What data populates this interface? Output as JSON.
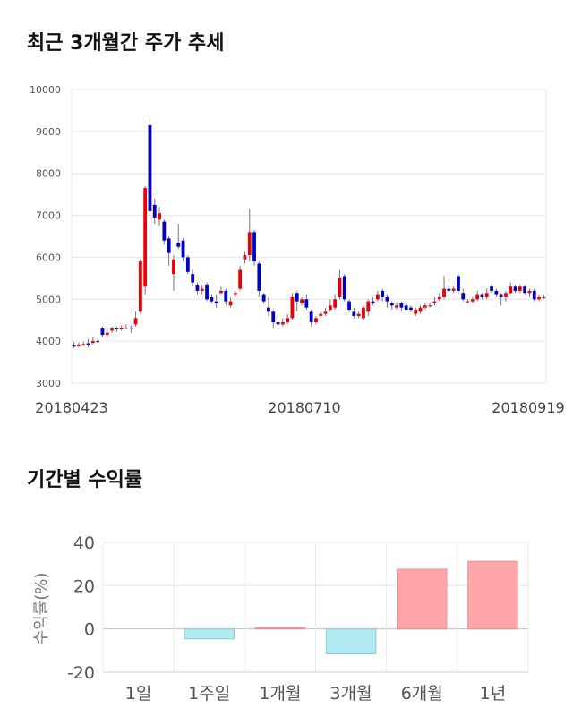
{
  "titles": {
    "price": "최근 3개월간 주가 추세",
    "returns": "기간별 수익률"
  },
  "colors": {
    "up": "#e8000b",
    "down": "#0000c8",
    "positive": "#ffa6a8",
    "negative": "#b2ebf2"
  },
  "chart_data": [
    {
      "type": "candlestick",
      "title": "최근 3개월간 주가 추세",
      "ylim": [
        3000,
        10000
      ],
      "yticks": [
        3000,
        4000,
        5000,
        6000,
        7000,
        8000,
        9000,
        10000
      ],
      "x_tick_labels": [
        "20180423",
        "20180710",
        "20180919"
      ],
      "grid": true,
      "candles": [
        {
          "o": 3900,
          "c": 3870,
          "h": 3980,
          "l": 3840
        },
        {
          "o": 3880,
          "c": 3920,
          "h": 3960,
          "l": 3850
        },
        {
          "o": 3900,
          "c": 3930,
          "h": 3990,
          "l": 3880
        },
        {
          "o": 3950,
          "c": 3900,
          "h": 4050,
          "l": 3860
        },
        {
          "o": 3960,
          "c": 4000,
          "h": 4100,
          "l": 3920
        },
        {
          "o": 4000,
          "c": 3980,
          "h": 4060,
          "l": 3950
        },
        {
          "o": 4300,
          "c": 4150,
          "h": 4350,
          "l": 4100
        },
        {
          "o": 4150,
          "c": 4200,
          "h": 4300,
          "l": 4100
        },
        {
          "o": 4250,
          "c": 4300,
          "h": 4350,
          "l": 4200
        },
        {
          "o": 4300,
          "c": 4280,
          "h": 4350,
          "l": 4220
        },
        {
          "o": 4280,
          "c": 4320,
          "h": 4380,
          "l": 4250
        },
        {
          "o": 4300,
          "c": 4320,
          "h": 4400,
          "l": 4280
        },
        {
          "o": 4320,
          "c": 4300,
          "h": 4380,
          "l": 4200
        },
        {
          "o": 4400,
          "c": 4550,
          "h": 4700,
          "l": 4350
        },
        {
          "o": 4700,
          "c": 5900,
          "h": 5950,
          "l": 4650
        },
        {
          "o": 5300,
          "c": 7650,
          "h": 7700,
          "l": 5100
        },
        {
          "o": 9150,
          "c": 7100,
          "h": 9350,
          "l": 7000
        },
        {
          "o": 7250,
          "c": 6950,
          "h": 7400,
          "l": 6800
        },
        {
          "o": 6900,
          "c": 7050,
          "h": 7200,
          "l": 6750
        },
        {
          "o": 6850,
          "c": 6400,
          "h": 6900,
          "l": 6300
        },
        {
          "o": 6450,
          "c": 6100,
          "h": 6500,
          "l": 5800
        },
        {
          "o": 5600,
          "c": 5950,
          "h": 6050,
          "l": 5200
        },
        {
          "o": 6350,
          "c": 6250,
          "h": 6800,
          "l": 6200
        },
        {
          "o": 6400,
          "c": 6000,
          "h": 6450,
          "l": 5900
        },
        {
          "o": 6000,
          "c": 5650,
          "h": 6050,
          "l": 5600
        },
        {
          "o": 5600,
          "c": 5400,
          "h": 5700,
          "l": 5300
        },
        {
          "o": 5350,
          "c": 5200,
          "h": 5400,
          "l": 5100
        },
        {
          "o": 5200,
          "c": 5250,
          "h": 5350,
          "l": 5100
        },
        {
          "o": 5350,
          "c": 5000,
          "h": 5400,
          "l": 4950
        },
        {
          "o": 5050,
          "c": 4950,
          "h": 5100,
          "l": 4900
        },
        {
          "o": 4950,
          "c": 4900,
          "h": 5100,
          "l": 4800
        },
        {
          "o": 5150,
          "c": 5200,
          "h": 5300,
          "l": 5100
        },
        {
          "o": 5200,
          "c": 4950,
          "h": 5250,
          "l": 4850
        },
        {
          "o": 4850,
          "c": 4950,
          "h": 5050,
          "l": 4800
        },
        {
          "o": 5100,
          "c": 5150,
          "h": 5200,
          "l": 5050
        },
        {
          "o": 5250,
          "c": 5700,
          "h": 5800,
          "l": 5200
        },
        {
          "o": 5950,
          "c": 6050,
          "h": 6150,
          "l": 5850
        },
        {
          "o": 6050,
          "c": 6600,
          "h": 7150,
          "l": 5900
        },
        {
          "o": 6600,
          "c": 5900,
          "h": 6650,
          "l": 5800
        },
        {
          "o": 5850,
          "c": 5200,
          "h": 5900,
          "l": 5050
        },
        {
          "o": 5100,
          "c": 4950,
          "h": 5150,
          "l": 4900
        },
        {
          "o": 4800,
          "c": 4700,
          "h": 5050,
          "l": 4600
        },
        {
          "o": 4700,
          "c": 4450,
          "h": 4750,
          "l": 4300
        },
        {
          "o": 4450,
          "c": 4400,
          "h": 4500,
          "l": 4350
        },
        {
          "o": 4400,
          "c": 4450,
          "h": 4550,
          "l": 4350
        },
        {
          "o": 4450,
          "c": 4550,
          "h": 4650,
          "l": 4400
        },
        {
          "o": 4550,
          "c": 5050,
          "h": 5150,
          "l": 4500
        },
        {
          "o": 5150,
          "c": 4950,
          "h": 5200,
          "l": 4700
        },
        {
          "o": 4900,
          "c": 5000,
          "h": 5050,
          "l": 4850
        },
        {
          "o": 5000,
          "c": 4800,
          "h": 5100,
          "l": 4750
        },
        {
          "o": 4700,
          "c": 4450,
          "h": 4750,
          "l": 4350
        },
        {
          "o": 4450,
          "c": 4550,
          "h": 4600,
          "l": 4400
        },
        {
          "o": 4600,
          "c": 4650,
          "h": 4700,
          "l": 4550
        },
        {
          "o": 4650,
          "c": 4700,
          "h": 4800,
          "l": 4600
        },
        {
          "o": 4750,
          "c": 4850,
          "h": 5000,
          "l": 4700
        },
        {
          "o": 4800,
          "c": 5000,
          "h": 5100,
          "l": 4750
        },
        {
          "o": 5050,
          "c": 5500,
          "h": 5700,
          "l": 5000
        },
        {
          "o": 5550,
          "c": 5000,
          "h": 5600,
          "l": 4950
        },
        {
          "o": 4950,
          "c": 4750,
          "h": 5000,
          "l": 4700
        },
        {
          "o": 4700,
          "c": 4600,
          "h": 4800,
          "l": 4550
        },
        {
          "o": 4600,
          "c": 4650,
          "h": 4700,
          "l": 4550
        },
        {
          "o": 4550,
          "c": 4800,
          "h": 4850,
          "l": 4500
        },
        {
          "o": 4700,
          "c": 4950,
          "h": 5000,
          "l": 4600
        },
        {
          "o": 4950,
          "c": 4900,
          "h": 5050,
          "l": 4850
        },
        {
          "o": 5000,
          "c": 5100,
          "h": 5200,
          "l": 4950
        },
        {
          "o": 5200,
          "c": 5050,
          "h": 5250,
          "l": 4950
        },
        {
          "o": 5050,
          "c": 4950,
          "h": 5100,
          "l": 4800
        },
        {
          "o": 4900,
          "c": 4850,
          "h": 4950,
          "l": 4750
        },
        {
          "o": 4800,
          "c": 4850,
          "h": 4900,
          "l": 4750
        },
        {
          "o": 4900,
          "c": 4800,
          "h": 4950,
          "l": 4700
        },
        {
          "o": 4850,
          "c": 4750,
          "h": 4900,
          "l": 4700
        },
        {
          "o": 4800,
          "c": 4750,
          "h": 4850,
          "l": 4700
        },
        {
          "o": 4650,
          "c": 4750,
          "h": 4800,
          "l": 4600
        },
        {
          "o": 4700,
          "c": 4800,
          "h": 4850,
          "l": 4650
        },
        {
          "o": 4800,
          "c": 4850,
          "h": 4900,
          "l": 4750
        },
        {
          "o": 4850,
          "c": 4850,
          "h": 4900,
          "l": 4800
        },
        {
          "o": 4900,
          "c": 4950,
          "h": 5050,
          "l": 4850
        },
        {
          "o": 5000,
          "c": 5050,
          "h": 5150,
          "l": 4950
        },
        {
          "o": 5050,
          "c": 5250,
          "h": 5550,
          "l": 5000
        },
        {
          "o": 5250,
          "c": 5200,
          "h": 5350,
          "l": 5150
        },
        {
          "o": 5200,
          "c": 5250,
          "h": 5300,
          "l": 5150
        },
        {
          "o": 5550,
          "c": 5200,
          "h": 5600,
          "l": 5150
        },
        {
          "o": 5150,
          "c": 5000,
          "h": 5250,
          "l": 4950
        },
        {
          "o": 4950,
          "c": 4950,
          "h": 5000,
          "l": 4900
        },
        {
          "o": 4950,
          "c": 5000,
          "h": 5050,
          "l": 4900
        },
        {
          "o": 5000,
          "c": 5100,
          "h": 5200,
          "l": 4950
        },
        {
          "o": 5100,
          "c": 5050,
          "h": 5150,
          "l": 5000
        },
        {
          "o": 5050,
          "c": 5150,
          "h": 5250,
          "l": 5000
        },
        {
          "o": 5300,
          "c": 5200,
          "h": 5350,
          "l": 5150
        },
        {
          "o": 5200,
          "c": 5100,
          "h": 5250,
          "l": 5050
        },
        {
          "o": 5100,
          "c": 5050,
          "h": 5150,
          "l": 4850
        },
        {
          "o": 5050,
          "c": 5150,
          "h": 5200,
          "l": 4950
        },
        {
          "o": 5150,
          "c": 5300,
          "h": 5400,
          "l": 5100
        },
        {
          "o": 5300,
          "c": 5200,
          "h": 5350,
          "l": 5150
        },
        {
          "o": 5200,
          "c": 5300,
          "h": 5350,
          "l": 5150
        },
        {
          "o": 5300,
          "c": 5150,
          "h": 5350,
          "l": 5100
        },
        {
          "o": 5150,
          "c": 5200,
          "h": 5250,
          "l": 5050
        },
        {
          "o": 5200,
          "c": 5000,
          "h": 5250,
          "l": 4950
        },
        {
          "o": 5000,
          "c": 5050,
          "h": 5100,
          "l": 4950
        },
        {
          "o": 5050,
          "c": 5050,
          "h": 5100,
          "l": 5000
        }
      ]
    },
    {
      "type": "bar",
      "title": "기간별 수익률",
      "ylabel": "수익률(%)",
      "ylim": [
        -20,
        40
      ],
      "yticks": [
        -20,
        0,
        20,
        40
      ],
      "categories": [
        "1일",
        "1주일",
        "1개월",
        "3개월",
        "6개월",
        "1년"
      ],
      "values": [
        0,
        -4.6,
        0.6,
        -11.5,
        27.6,
        31.2
      ],
      "grid": true
    }
  ]
}
